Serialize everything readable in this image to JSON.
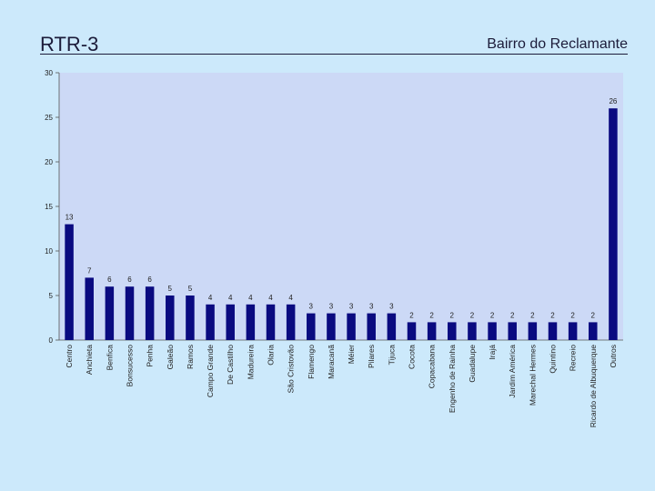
{
  "slide": {
    "title": "RTR-3",
    "subtitle": "Bairro do Reclamante"
  },
  "chart_data": {
    "type": "bar",
    "title": "",
    "xlabel": "",
    "ylabel": "",
    "ylim": [
      0,
      30
    ],
    "yticks": [
      0,
      5,
      10,
      15,
      20,
      25,
      30
    ],
    "grid": false,
    "legend": "none",
    "colors": {
      "bar": "#0a0a80",
      "plot_bg": "#ccd9f6"
    },
    "categories": [
      "Centro",
      "Anchieta",
      "Benfica",
      "Bonsucesso",
      "Penha",
      "Galeão",
      "Ramos",
      "Campo Grande",
      "De Castilho",
      "Madureira",
      "Olaria",
      "São Cristovão",
      "Flamengo",
      "Maracanã",
      "Méier",
      "Pilares",
      "Tijuca",
      "Cocota",
      "Copacabana",
      "Engenho de Rainha",
      "Guadalupe",
      "Irajá",
      "Jardim América",
      "Marechal Hermes",
      "Quintino",
      "Recreio",
      "Ricardo de Albuquerque",
      "Outros"
    ],
    "values": [
      13,
      7,
      6,
      6,
      6,
      5,
      5,
      4,
      4,
      4,
      4,
      4,
      3,
      3,
      3,
      3,
      3,
      2,
      2,
      2,
      2,
      2,
      2,
      2,
      2,
      2,
      2,
      26
    ]
  }
}
